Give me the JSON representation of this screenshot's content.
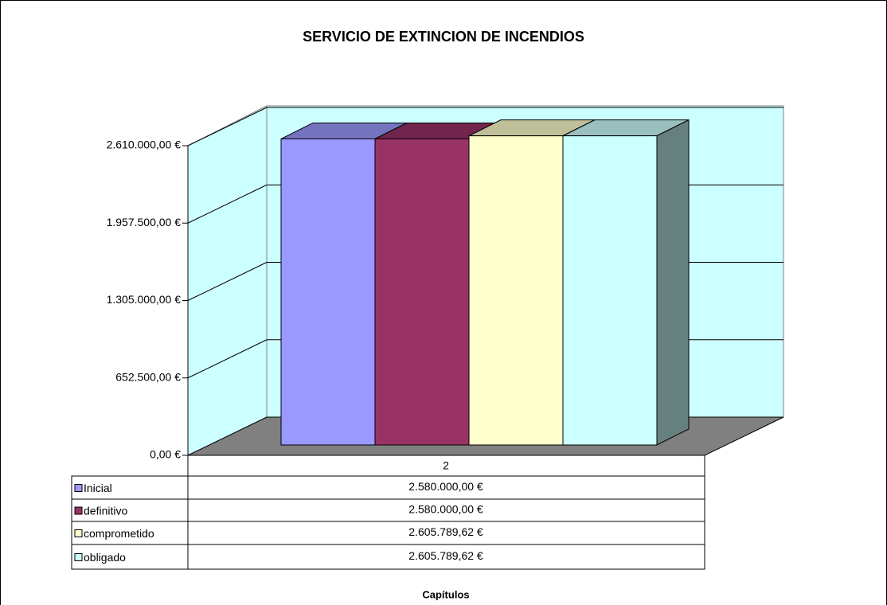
{
  "chart_data": {
    "type": "bar3d",
    "title": "SERVICIO DE EXTINCION DE INCENDIOS",
    "x_label": "Capítulos",
    "categories": [
      "2"
    ],
    "series": [
      {
        "name": "Inicial",
        "color": "#9999ff",
        "values": [
          2580000
        ],
        "value_labels": [
          "2.580.000,00 €"
        ]
      },
      {
        "name": "definitivo",
        "color": "#993366",
        "values": [
          2580000
        ],
        "value_labels": [
          "2.580.000,00 €"
        ]
      },
      {
        "name": "comprometido",
        "color": "#ffffcc",
        "values": [
          2605789.62
        ],
        "value_labels": [
          "2.605.789,62 €"
        ]
      },
      {
        "name": "obligado",
        "color": "#ccffff",
        "values": [
          2605789.62
        ],
        "value_labels": [
          "2.605.789,62 €"
        ]
      }
    ],
    "ylim": [
      0,
      2610000
    ],
    "yticks": [
      {
        "value": 0,
        "label": "0,00 €"
      },
      {
        "value": 652500,
        "label": "652.500,00 €"
      },
      {
        "value": 1305000,
        "label": "1.305.000,00 €"
      },
      {
        "value": 1957500,
        "label": "1.957.500,00 €"
      },
      {
        "value": 2610000,
        "label": "2.610.000,00 €"
      }
    ],
    "grid": true,
    "data_table": true
  }
}
